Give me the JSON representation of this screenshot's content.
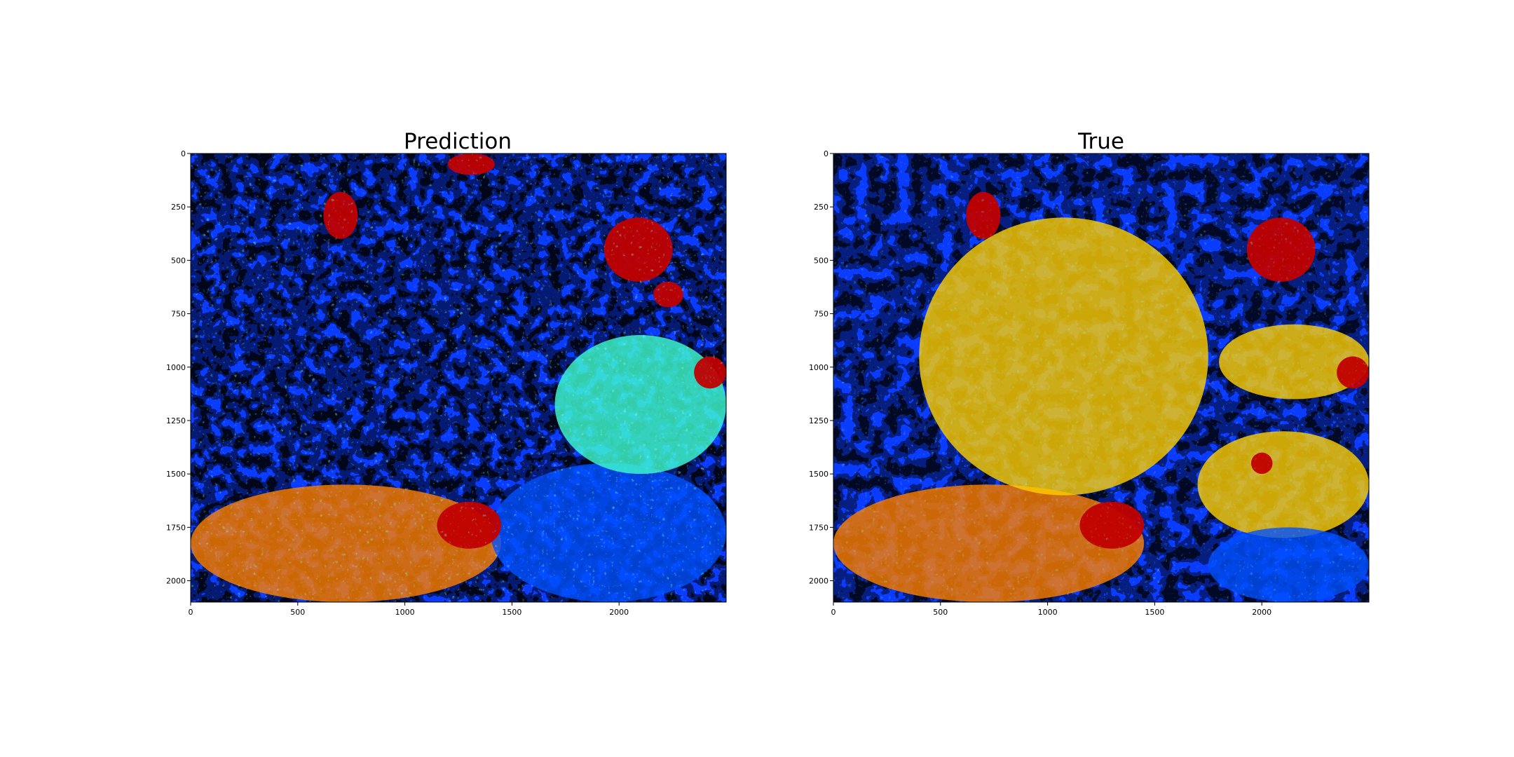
{
  "figure": {
    "panels": [
      {
        "title": "Prediction",
        "xticks": [
          0,
          500,
          1000,
          1500,
          2000
        ],
        "yticks": [
          0,
          250,
          500,
          750,
          1000,
          1250,
          1500,
          1750,
          2000
        ]
      },
      {
        "title": "True",
        "xticks": [
          0,
          500,
          1000,
          1500,
          2000
        ],
        "yticks": [
          0,
          250,
          500,
          750,
          1000,
          1250,
          1500,
          1750,
          2000
        ]
      }
    ]
  },
  "chart_data": [
    {
      "type": "heatmap",
      "title": "Prediction",
      "xlabel": "",
      "ylabel": "",
      "xlim": [
        0,
        2500
      ],
      "ylim": [
        2100,
        0
      ],
      "colormap": "jet",
      "class_colors": [
        "#00008f",
        "#0050ff",
        "#1fb0ff",
        "#40ffd0",
        "#c0ff40",
        "#ffd000",
        "#ff8000",
        "#c00000"
      ],
      "regions": [
        {
          "class": 6,
          "x": [
            0,
            1450
          ],
          "y": [
            1550,
            2100
          ]
        },
        {
          "class": 1,
          "x": [
            1400,
            2500
          ],
          "y": [
            1450,
            2100
          ]
        },
        {
          "class": 3,
          "x": [
            1700,
            2500
          ],
          "y": [
            850,
            1500
          ]
        },
        {
          "class": 7,
          "x": [
            1150,
            1450
          ],
          "y": [
            1630,
            1850
          ]
        },
        {
          "class": 7,
          "x": [
            1930,
            2250
          ],
          "y": [
            300,
            600
          ]
        },
        {
          "class": 7,
          "x": [
            620,
            780
          ],
          "y": [
            180,
            400
          ]
        },
        {
          "class": 7,
          "x": [
            1200,
            1420
          ],
          "y": [
            0,
            100
          ]
        },
        {
          "class": 7,
          "x": [
            2350,
            2500
          ],
          "y": [
            950,
            1100
          ]
        },
        {
          "class": 7,
          "x": [
            2160,
            2300
          ],
          "y": [
            600,
            720
          ]
        }
      ]
    },
    {
      "type": "heatmap",
      "title": "True",
      "xlabel": "",
      "ylabel": "",
      "xlim": [
        0,
        2500
      ],
      "ylim": [
        2100,
        0
      ],
      "colormap": "jet",
      "class_colors": [
        "#00008f",
        "#0050ff",
        "#1fb0ff",
        "#40ffd0",
        "#c0ff40",
        "#ffd000",
        "#ff8000",
        "#c00000"
      ],
      "regions": [
        {
          "class": 6,
          "x": [
            0,
            1450
          ],
          "y": [
            1550,
            2100
          ]
        },
        {
          "class": 5,
          "x": [
            400,
            1750
          ],
          "y": [
            300,
            1600
          ]
        },
        {
          "class": 5,
          "x": [
            1800,
            2500
          ],
          "y": [
            800,
            1150
          ]
        },
        {
          "class": 5,
          "x": [
            1700,
            2500
          ],
          "y": [
            1300,
            1800
          ]
        },
        {
          "class": 1,
          "x": [
            1750,
            2500
          ],
          "y": [
            1750,
            2100
          ]
        },
        {
          "class": 7,
          "x": [
            1150,
            1450
          ],
          "y": [
            1630,
            1850
          ]
        },
        {
          "class": 7,
          "x": [
            1930,
            2250
          ],
          "y": [
            300,
            600
          ]
        },
        {
          "class": 7,
          "x": [
            620,
            780
          ],
          "y": [
            180,
            400
          ]
        },
        {
          "class": 7,
          "x": [
            2350,
            2500
          ],
          "y": [
            950,
            1100
          ]
        },
        {
          "class": 7,
          "x": [
            1950,
            2050
          ],
          "y": [
            1400,
            1500
          ]
        }
      ]
    }
  ]
}
